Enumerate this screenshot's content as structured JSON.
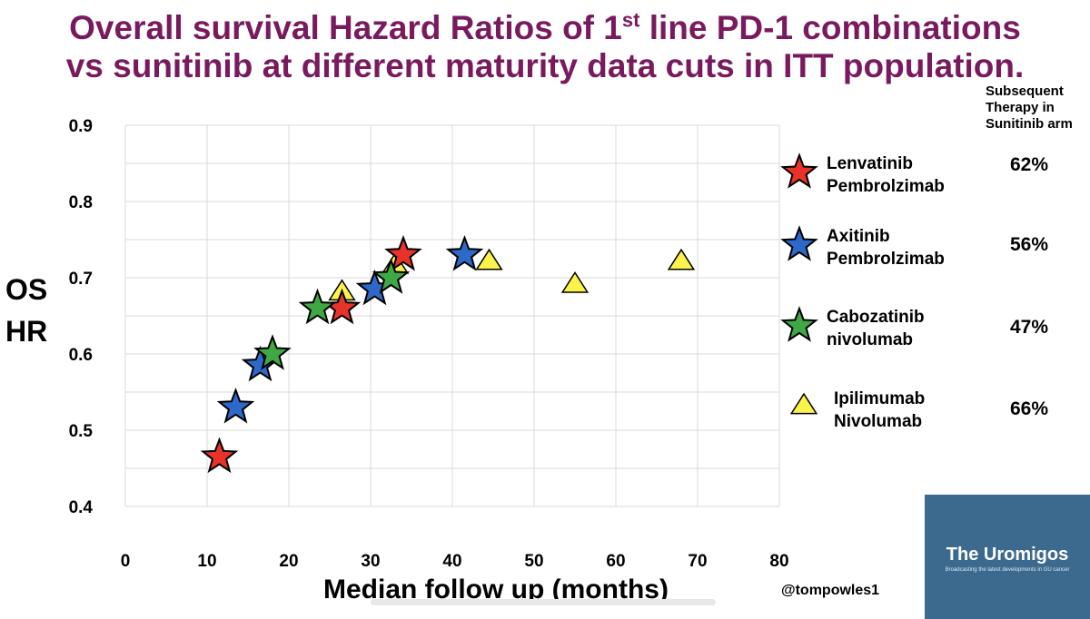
{
  "title_line1_pre": "Overall survival Hazard Ratios of 1",
  "title_line1_sup": "st",
  "title_line1_post": " line PD-1 combinations",
  "title_line2": "vs sunitinib at different maturity data cuts in ITT population.",
  "subsequent_header": "Subsequent Therapy in Sunitinib arm",
  "handle": "@tompowles1",
  "logo": {
    "name": "The Uromigos",
    "tagline": "Broadcasting the latest developments in GU cancer"
  },
  "colors": {
    "title": "#7a1a5e",
    "red": "#e8332a",
    "blue": "#2e68c8",
    "green": "#3fa844",
    "yellow": "#fbf24a",
    "logo_bg": "#3c6a8e"
  },
  "chart_data": {
    "type": "scatter",
    "xlabel": "Median follow up (months)",
    "ylabel_line1": "OS",
    "ylabel_line2": "HR",
    "xlim": [
      0,
      80
    ],
    "ylim": [
      0.4,
      0.9
    ],
    "xticks": [
      "0",
      "10",
      "20",
      "30",
      "40",
      "50",
      "60",
      "70",
      "80"
    ],
    "yticks": [
      "0.4",
      "0.5",
      "0.6",
      "0.7",
      "0.8",
      "0.9"
    ],
    "grid": "horizontal and vertical",
    "legend_placement": "right",
    "series": [
      {
        "name_line1": "Lenvatinib",
        "name_line2": "Pembrolzimab",
        "marker": "star",
        "color": "#e8332a",
        "subsequent_therapy": "62%",
        "points": [
          {
            "x": 11.5,
            "y": 0.465
          },
          {
            "x": 26.5,
            "y": 0.66
          },
          {
            "x": 34,
            "y": 0.73
          }
        ]
      },
      {
        "name_line1": "Axitinib",
        "name_line2": "Pembrolzimab",
        "marker": "star",
        "color": "#2e68c8",
        "subsequent_therapy": "56%",
        "points": [
          {
            "x": 13.5,
            "y": 0.53
          },
          {
            "x": 16.5,
            "y": 0.585
          },
          {
            "x": 30.5,
            "y": 0.685
          },
          {
            "x": 41.5,
            "y": 0.73
          }
        ]
      },
      {
        "name_line1": "Cabozatinib",
        "name_line2": "nivolumab",
        "marker": "star",
        "color": "#3fa844",
        "subsequent_therapy": "47%",
        "points": [
          {
            "x": 18,
            "y": 0.6
          },
          {
            "x": 23.5,
            "y": 0.66
          },
          {
            "x": 32.5,
            "y": 0.7
          }
        ]
      },
      {
        "name_line1": "Ipilimumab",
        "name_line2": "Nivolumab",
        "marker": "triangle",
        "color": "#fbf24a",
        "subsequent_therapy": "66%",
        "points": [
          {
            "x": 26.5,
            "y": 0.68
          },
          {
            "x": 33,
            "y": 0.715
          },
          {
            "x": 44.5,
            "y": 0.72
          },
          {
            "x": 55,
            "y": 0.69
          },
          {
            "x": 68,
            "y": 0.72
          }
        ]
      }
    ]
  }
}
